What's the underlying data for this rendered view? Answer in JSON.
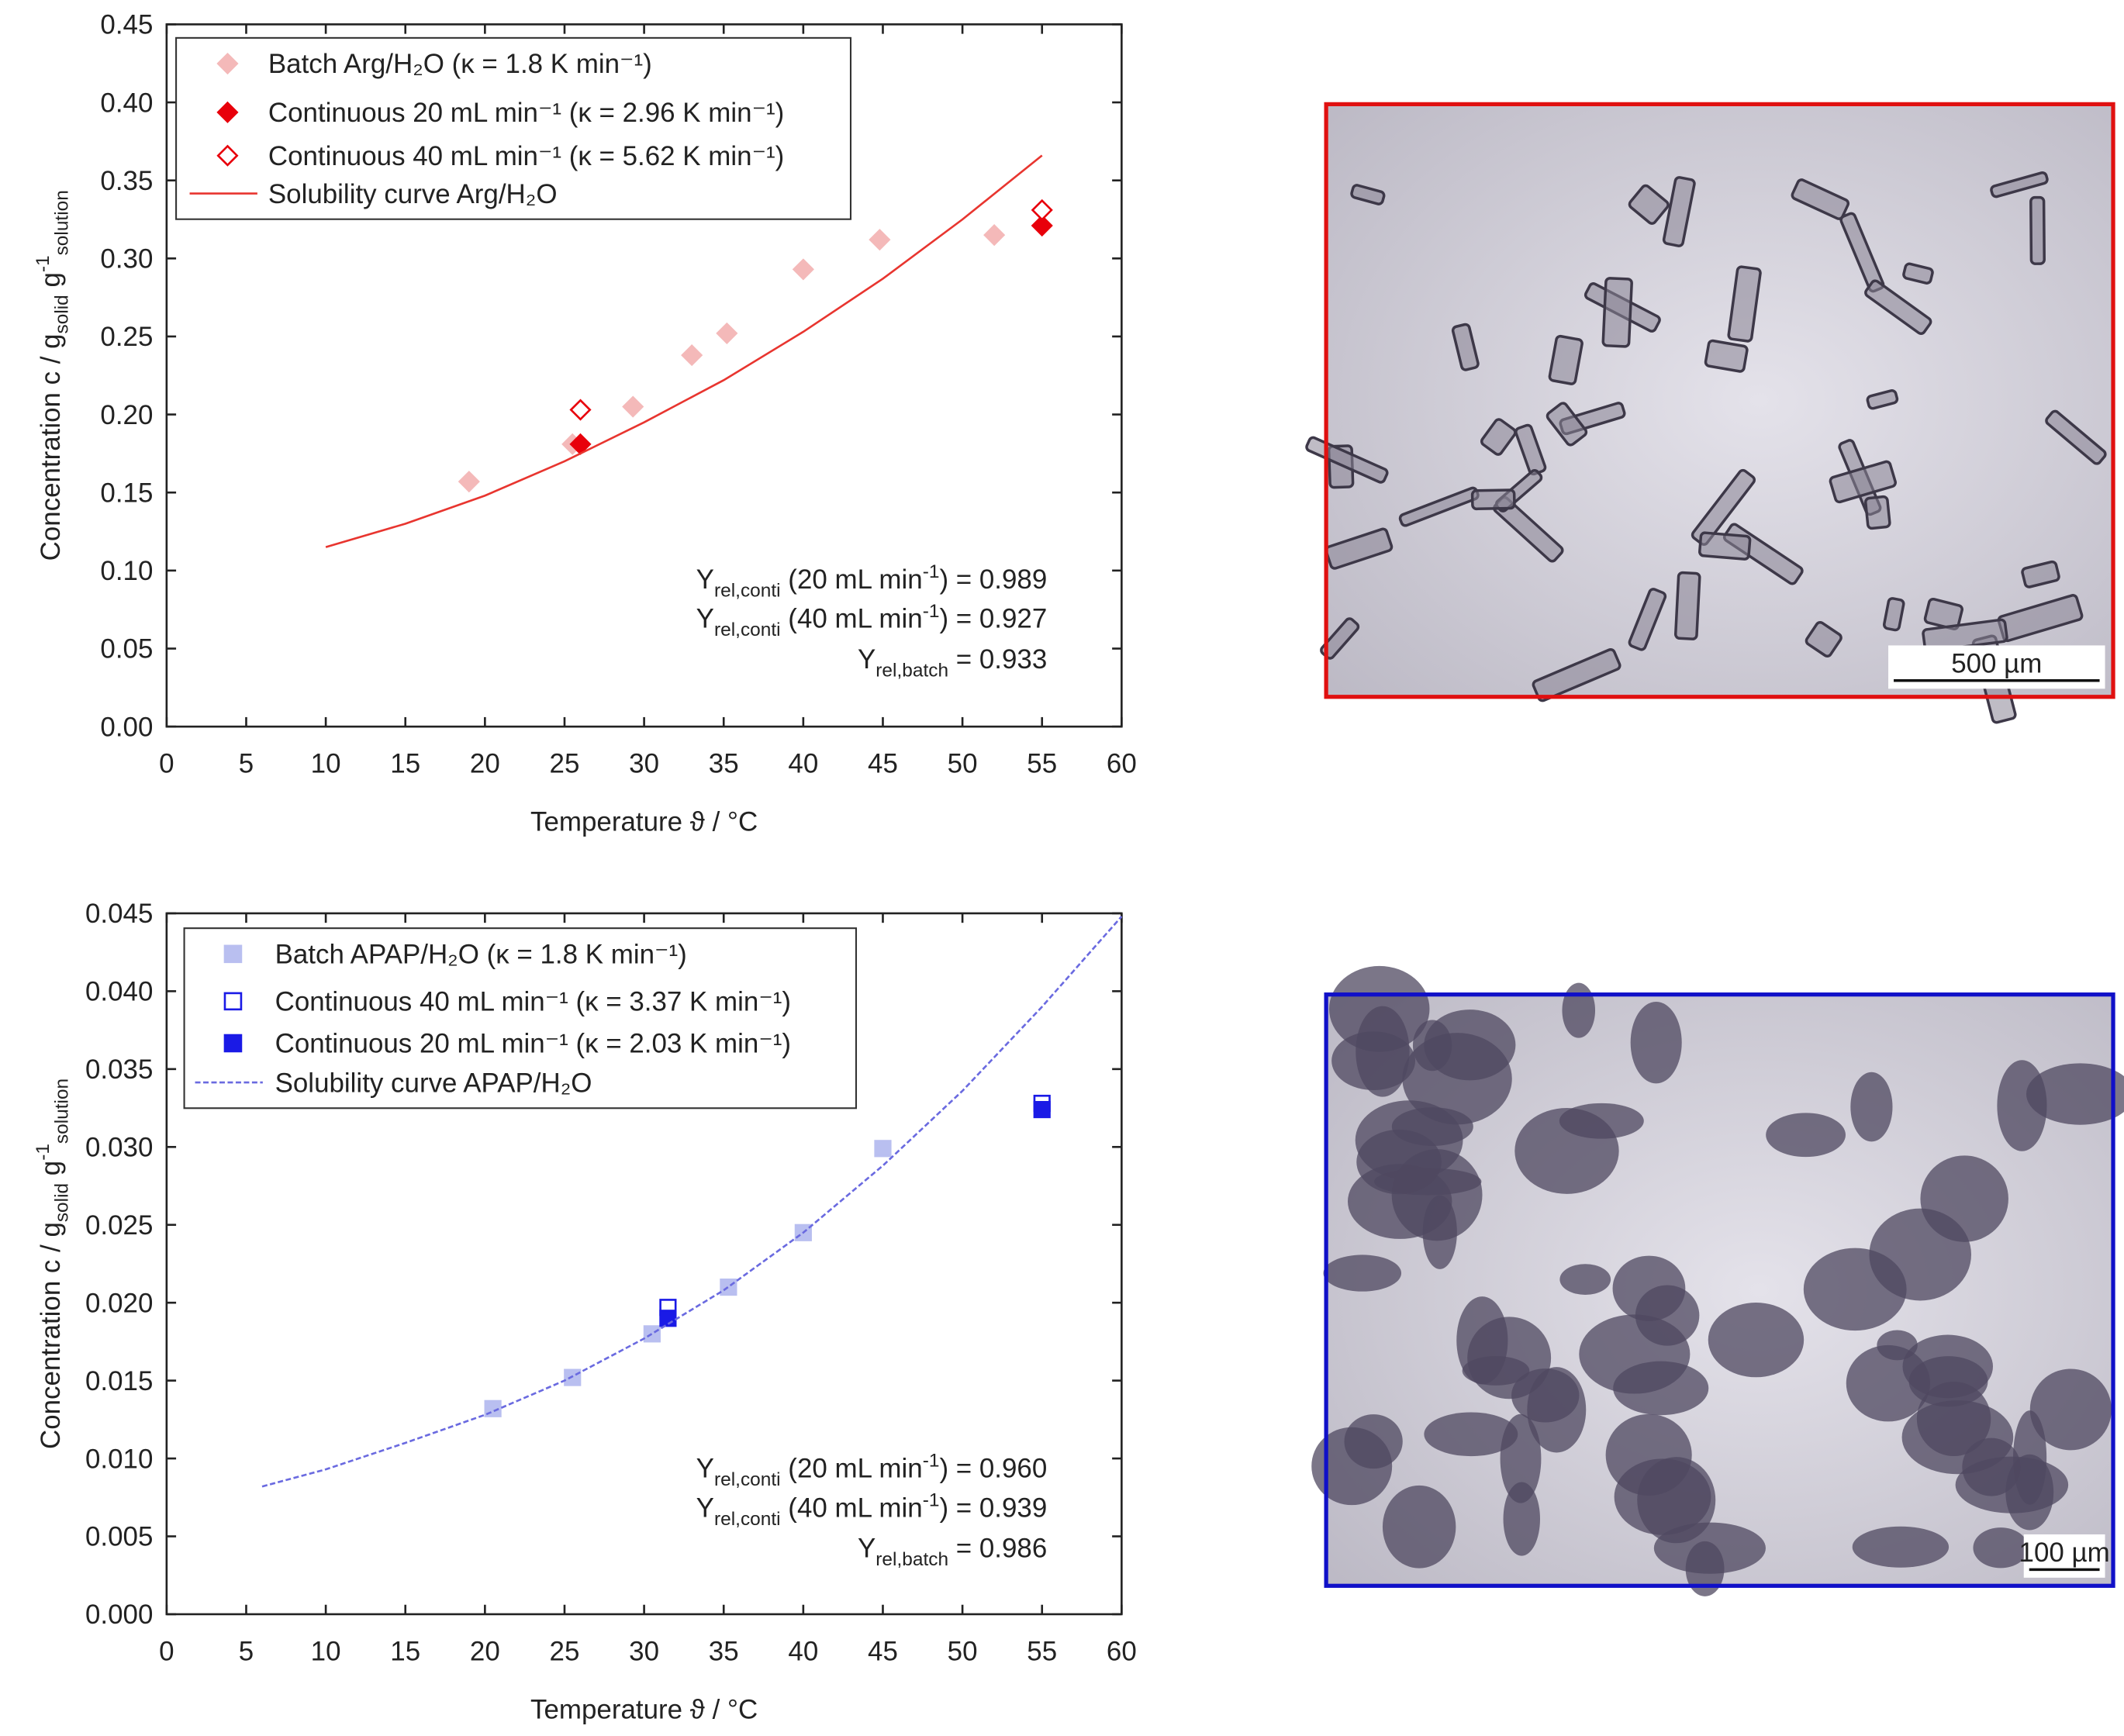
{
  "chart_data": [
    {
      "type": "scatter",
      "y_label": [
        {
          "text": "Concentration c / g"
        },
        {
          "text": "solid",
          "shift": "sub"
        },
        {
          "text": " g"
        },
        {
          "text": "-1",
          "shift": "sup"
        },
        {
          "text": "solution",
          "shift": "sub"
        }
      ],
      "x_label": [
        {
          "text": "Temperature ϑ / °C"
        }
      ],
      "xlim": [
        0,
        60
      ],
      "xticks": [
        0,
        5,
        10,
        15,
        20,
        25,
        30,
        35,
        40,
        45,
        50,
        55,
        60
      ],
      "ylim": [
        0,
        0.45
      ],
      "yticks": [
        {
          "value": 0,
          "label": "0.00"
        },
        0.05,
        {
          "value": 0.1,
          "label": "0.10"
        },
        0.15,
        {
          "value": 0.2,
          "label": "0.20"
        },
        0.25,
        {
          "value": 0.3,
          "label": "0.30"
        },
        0.35,
        {
          "value": 0.4,
          "label": "0.40"
        },
        0.45
      ],
      "legend": "upper left",
      "series": [
        {
          "name": "Batch Arg/H₂O (κ = 1.8 K min⁻¹)",
          "color": "#f4b9b9",
          "mode": "markers",
          "marker": "diamond",
          "filled": true,
          "x": [
            19,
            25.5,
            29.3,
            33,
            35.2,
            40,
            44.8,
            52
          ],
          "values": [
            0.157,
            0.181,
            0.205,
            0.238,
            0.252,
            0.293,
            0.312,
            0.315
          ]
        },
        {
          "name": "Continuous 20 mL min⁻¹ (κ = 2.96 K min⁻¹)",
          "color": "#e8000b",
          "mode": "markers",
          "marker": "diamond",
          "filled": true,
          "x": [
            26,
            55
          ],
          "values": [
            0.181,
            0.321
          ]
        },
        {
          "name": "Continuous 40 mL min⁻¹ (κ = 5.62 K min⁻¹)",
          "color": "#e8000b",
          "mode": "markers",
          "marker": "diamond",
          "filled": false,
          "x": [
            26,
            55
          ],
          "values": [
            0.203,
            0.331
          ]
        },
        {
          "name": "Solubility curve Arg/H₂O",
          "color": "#e8352f",
          "mode": "line",
          "dash": false,
          "x": [
            10,
            15,
            20,
            25,
            30,
            35,
            40,
            45,
            50,
            55
          ],
          "values": [
            0.115,
            0.13,
            0.148,
            0.17,
            0.195,
            0.222,
            0.253,
            0.287,
            0.325,
            0.366
          ]
        }
      ],
      "annotation_color": "#e8000b",
      "annotations": [
        [
          {
            "text": "Y"
          },
          {
            "text": "rel,conti",
            "shift": "sub"
          },
          {
            "text": " (20 mL min"
          },
          {
            "text": "-1",
            "shift": "sup"
          },
          {
            "text": ") = 0.989"
          }
        ],
        [
          {
            "text": "Y"
          },
          {
            "text": "rel,conti",
            "shift": "sub"
          },
          {
            "text": " (40 mL min"
          },
          {
            "text": "-1",
            "shift": "sup"
          },
          {
            "text": ") = 0.927"
          }
        ],
        [
          {
            "text": "Y"
          },
          {
            "text": "rel,batch",
            "shift": "sub"
          },
          {
            "text": " = 0.933"
          }
        ]
      ]
    },
    {
      "type": "scatter",
      "y_label": [
        {
          "text": "Concentration c / g"
        },
        {
          "text": "solid",
          "shift": "sub"
        },
        {
          "text": " g"
        },
        {
          "text": "-1",
          "shift": "sup"
        },
        {
          "text": "solution",
          "shift": "sub"
        }
      ],
      "x_label": [
        {
          "text": "Temperature ϑ / °C"
        }
      ],
      "xlim": [
        0,
        60
      ],
      "xticks": [
        0,
        5,
        10,
        15,
        20,
        25,
        30,
        35,
        40,
        45,
        50,
        55,
        60
      ],
      "ylim": [
        0,
        0.045
      ],
      "yticks": [
        {
          "value": 0,
          "label": "0.000"
        },
        0.005,
        {
          "value": 0.01,
          "label": "0.010"
        },
        0.015,
        {
          "value": 0.02,
          "label": "0.020"
        },
        0.025,
        {
          "value": 0.03,
          "label": "0.030"
        },
        0.035,
        {
          "value": 0.04,
          "label": "0.040"
        },
        0.045
      ],
      "legend": "upper left",
      "series": [
        {
          "name": "Batch APAP/H₂O (κ = 1.8 K min⁻¹)",
          "color": "#b9bff0",
          "mode": "markers",
          "marker": "square",
          "filled": true,
          "x": [
            20.5,
            25.5,
            30.5,
            35.3,
            40,
            45
          ],
          "values": [
            0.0132,
            0.0152,
            0.018,
            0.021,
            0.0245,
            0.0299
          ]
        },
        {
          "name": "Continuous 40 mL min⁻¹ (κ = 3.37 K min⁻¹)",
          "color": "#1a1ae6",
          "mode": "markers",
          "marker": "square",
          "filled": false,
          "x": [
            31.5,
            55
          ],
          "values": [
            0.0197,
            0.0328
          ]
        },
        {
          "name": "Continuous 20 mL min⁻¹ (κ = 2.03 K min⁻¹)",
          "color": "#1a1ae6",
          "mode": "markers",
          "marker": "square",
          "filled": true,
          "x": [
            31.5,
            55
          ],
          "values": [
            0.019,
            0.0324
          ]
        },
        {
          "name": "Solubility curve APAP/H₂O",
          "color": "#6a6ae0",
          "mode": "line",
          "dash": true,
          "x": [
            6,
            10,
            15,
            20,
            25,
            30,
            35,
            40,
            45,
            50,
            55,
            60
          ],
          "values": [
            0.0082,
            0.0093,
            0.011,
            0.0128,
            0.015,
            0.0177,
            0.0208,
            0.0245,
            0.0288,
            0.0336,
            0.039,
            0.0448
          ]
        }
      ],
      "annotation_color": "#1a1ae6",
      "annotations": [
        [
          {
            "text": "Y"
          },
          {
            "text": "rel,conti",
            "shift": "sub"
          },
          {
            "text": " (20 mL min"
          },
          {
            "text": "-1",
            "shift": "sup"
          },
          {
            "text": ") = 0.960"
          }
        ],
        [
          {
            "text": "Y"
          },
          {
            "text": "rel,conti",
            "shift": "sub"
          },
          {
            "text": " (40 mL min"
          },
          {
            "text": "-1",
            "shift": "sup"
          },
          {
            "text": ") = 0.939"
          }
        ],
        [
          {
            "text": "Y"
          },
          {
            "text": "rel,batch",
            "shift": "sub"
          },
          {
            "text": " = 0.986"
          }
        ]
      ]
    }
  ],
  "micrographs": [
    {
      "scale_label": "500 µm",
      "border": "#e01010"
    },
    {
      "scale_label": "100 µm",
      "border": "#1010c8"
    }
  ]
}
